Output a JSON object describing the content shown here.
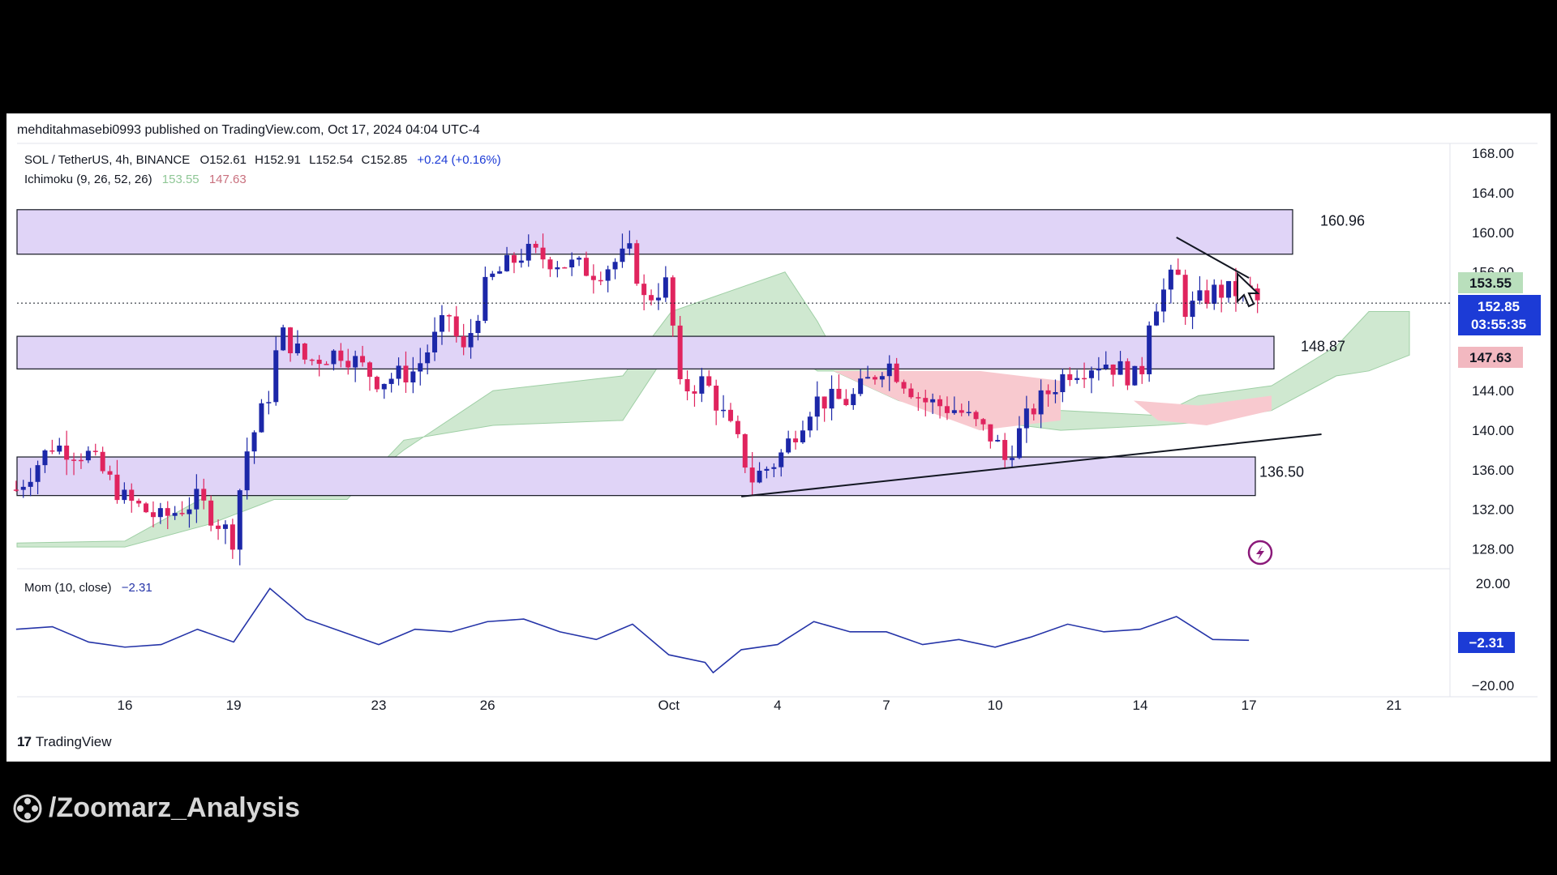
{
  "publisher_line": "mehditahmasebi0993 published on TradingView.com, Oct 17, 2024 04:04 UTC-4",
  "branding": {
    "tradingview": "TradingView",
    "watermark": "/Zoomarz_Analysis"
  },
  "colors": {
    "bull": "#1c27a8",
    "bear": "#e0245e",
    "zone": "#e0d4f7",
    "cloud_bull": "#cfe8d0",
    "cloud_bear": "#f8c9cf",
    "momentum": "#2534a8",
    "tag_green": "#b9dfbc",
    "tag_blue": "#1c3bd6",
    "tag_red": "#f2b8c0"
  },
  "legend": {
    "symbol": "SOL / TetherUS, 4h, BINANCE",
    "o_label": "O",
    "o": "152.61",
    "h_label": "H",
    "h": "152.91",
    "l_label": "L",
    "l": "152.54",
    "c_label": "C",
    "c": "152.85",
    "change": "+0.24 (+0.16%)",
    "ichimoku_label": "Ichimoku (9, 26, 52, 26)",
    "ichimoku_v1": "153.55",
    "ichimoku_v2": "147.63",
    "mom_label": "Mom (10, close)",
    "mom_value": "−2.31"
  },
  "price_tags": {
    "green": "153.55",
    "blue_price": "152.85",
    "blue_timer": "03:55:35",
    "red": "147.63",
    "mom": "−2.31"
  },
  "levels": [
    {
      "price": 160.96,
      "label": "160.96"
    },
    {
      "price": 148.87,
      "label": "148.87"
    },
    {
      "price": 136.5,
      "label": "136.50"
    }
  ],
  "chart_data": [
    {
      "type": "candlestick",
      "symbol": "SOL / TetherUS",
      "interval": "4h",
      "exchange": "BINANCE",
      "ylim": [
        126,
        169
      ],
      "y_ticks": [
        "168.00",
        "164.00",
        "160.00",
        "156.00",
        "153.55",
        "152.85",
        "147.63",
        "144.00",
        "140.00",
        "136.00",
        "132.00",
        "128.00"
      ],
      "x_ticks": [
        "16",
        "19",
        "23",
        "26",
        "Oct",
        "4",
        "7",
        "10",
        "14",
        "17",
        "21"
      ],
      "last_close": 152.85,
      "zones": [
        {
          "from": 157.8,
          "to": 162.3
        },
        {
          "from": 146.2,
          "to": 149.5
        },
        {
          "from": 133.4,
          "to": 137.3
        }
      ],
      "trendlines": [
        {
          "name": "support",
          "from": {
            "x": "Oct 3",
            "price": 133.3
          },
          "to": {
            "x": "Oct 19",
            "price": 139.6
          }
        },
        {
          "name": "resistance",
          "from": {
            "x": "Oct 15",
            "price": 159.5
          },
          "to": {
            "x": "Oct 17",
            "price": 155.4
          }
        }
      ],
      "close_path": [
        [
          "Sep 13",
          134
        ],
        [
          "Sep 14",
          138.5
        ],
        [
          "Sep 15",
          137.5
        ],
        [
          "Sep 16",
          133
        ],
        [
          "Sep 17",
          131
        ],
        [
          "Sep 18",
          133
        ],
        [
          "Sep 19",
          129
        ],
        [
          "Sep 19",
          137
        ],
        [
          "Sep 20",
          144
        ],
        [
          "Sep 20",
          150
        ],
        [
          "Sep 21",
          147
        ],
        [
          "Sep 22",
          148
        ],
        [
          "Sep 23",
          145
        ],
        [
          "Sep 24",
          146
        ],
        [
          "Sep 25",
          152
        ],
        [
          "Sep 25",
          147
        ],
        [
          "Sep 26",
          155
        ],
        [
          "Sep 27",
          158
        ],
        [
          "Sep 28",
          157
        ],
        [
          "Sep 29",
          156
        ],
        [
          "Sep 30",
          158
        ],
        [
          "Sep 30",
          153
        ],
        [
          "Oct 1",
          155
        ],
        [
          "Oct 1",
          144
        ],
        [
          "Oct 2",
          145
        ],
        [
          "Oct 3",
          138
        ],
        [
          "Oct 3",
          135
        ],
        [
          "Oct 4",
          137
        ],
        [
          "Oct 5",
          143
        ],
        [
          "Oct 6",
          143
        ],
        [
          "Oct 7",
          147
        ],
        [
          "Oct 8",
          143
        ],
        [
          "Oct 9",
          142
        ],
        [
          "Oct 10",
          139
        ],
        [
          "Oct 10",
          137
        ],
        [
          "Oct 11",
          142
        ],
        [
          "Oct 12",
          146
        ],
        [
          "Oct 13",
          147
        ],
        [
          "Oct 14",
          145
        ],
        [
          "Oct 14",
          152
        ],
        [
          "Oct 15",
          156
        ],
        [
          "Oct 15",
          152
        ],
        [
          "Oct 16",
          154
        ],
        [
          "Oct 17",
          154
        ],
        [
          "Oct 17",
          152.85
        ]
      ],
      "ichimoku_cloud": {
        "v1": 153.55,
        "v2": 147.63
      }
    },
    {
      "type": "line",
      "name": "Mom (10, close)",
      "last_value": -2.31,
      "ylim": [
        -20,
        20
      ],
      "y_ticks": [
        "20.00",
        "−20.00"
      ],
      "path": [
        [
          "Sep 13",
          2
        ],
        [
          "Sep 14",
          3
        ],
        [
          "Sep 15",
          -3
        ],
        [
          "Sep 16",
          -5
        ],
        [
          "Sep 17",
          -4
        ],
        [
          "Sep 18",
          2
        ],
        [
          "Sep 19",
          -3
        ],
        [
          "Sep 20",
          18
        ],
        [
          "Sep 21",
          6
        ],
        [
          "Sep 22",
          1
        ],
        [
          "Sep 23",
          -4
        ],
        [
          "Sep 24",
          2
        ],
        [
          "Sep 25",
          1
        ],
        [
          "Sep 26",
          5
        ],
        [
          "Sep 27",
          6
        ],
        [
          "Sep 28",
          1
        ],
        [
          "Sep 29",
          -2
        ],
        [
          "Sep 30",
          4
        ],
        [
          "Oct 1",
          -8
        ],
        [
          "Oct 2",
          -11
        ],
        [
          "Oct 2",
          -15
        ],
        [
          "Oct 3",
          -6
        ],
        [
          "Oct 4",
          -4
        ],
        [
          "Oct 5",
          5
        ],
        [
          "Oct 6",
          1
        ],
        [
          "Oct 7",
          1
        ],
        [
          "Oct 8",
          -4
        ],
        [
          "Oct 9",
          -2
        ],
        [
          "Oct 10",
          -5
        ],
        [
          "Oct 11",
          -1
        ],
        [
          "Oct 12",
          4
        ],
        [
          "Oct 13",
          1
        ],
        [
          "Oct 14",
          2
        ],
        [
          "Oct 15",
          7
        ],
        [
          "Oct 16",
          -2
        ],
        [
          "Oct 17",
          -2.31
        ]
      ]
    }
  ]
}
